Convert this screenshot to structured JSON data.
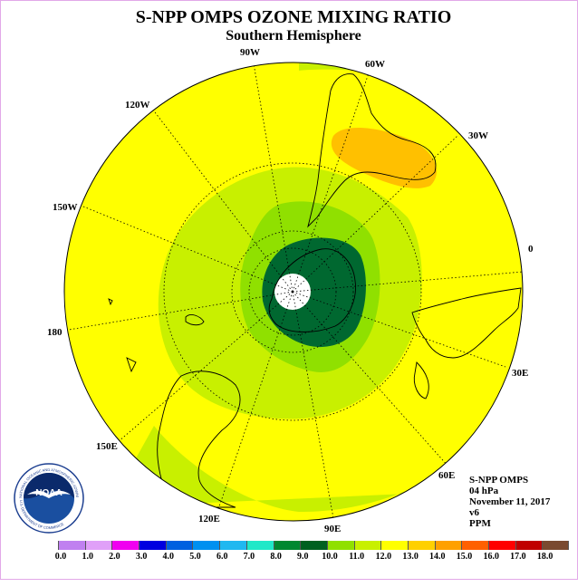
{
  "header": {
    "title": "S-NPP OMPS OZONE MIXING RATIO",
    "subtitle": "Southern Hemisphere"
  },
  "map": {
    "projection": "polar stereographic, south pole centered",
    "longitude_labels": [
      "90W",
      "60W",
      "30W",
      "0",
      "30E",
      "60E",
      "90E",
      "120E",
      "150E",
      "180",
      "150W",
      "120W"
    ],
    "colors": {
      "ocean_fill": "#ffff00",
      "orange_patch": "#ffc000",
      "light_green": "#c8f000",
      "mid_green": "#90e000",
      "dark_green": "#006830",
      "pole_mask": "#ffffff"
    }
  },
  "info": {
    "lines": [
      "S-NPP OMPS",
      "04 hPa",
      "November 11, 2017",
      "v6",
      "PPM"
    ]
  },
  "colorbar": {
    "colors": [
      "#c080f0",
      "#e0a0f8",
      "#f000f0",
      "#0000e0",
      "#0060e0",
      "#0090f0",
      "#20b8f0",
      "#20e8c8",
      "#008830",
      "#006020",
      "#90e000",
      "#c8f000",
      "#ffff00",
      "#ffd000",
      "#ffa000",
      "#ff6000",
      "#ff0000",
      "#c00000",
      "#7a4a30"
    ],
    "ticks": [
      "0.0",
      "1.0",
      "2.0",
      "3.0",
      "4.0",
      "5.0",
      "6.0",
      "7.0",
      "8.0",
      "9.0",
      "10.0",
      "11.0",
      "12.0",
      "13.0",
      "14.0",
      "15.0",
      "16.0",
      "17.0",
      "18.0"
    ]
  },
  "logo": {
    "text": "NOAA",
    "ring_text": "NATIONAL OCEANIC AND ATMOSPHERIC ADMINISTRATION",
    "bottom_text": "U.S. DEPARTMENT OF COMMERCE"
  }
}
